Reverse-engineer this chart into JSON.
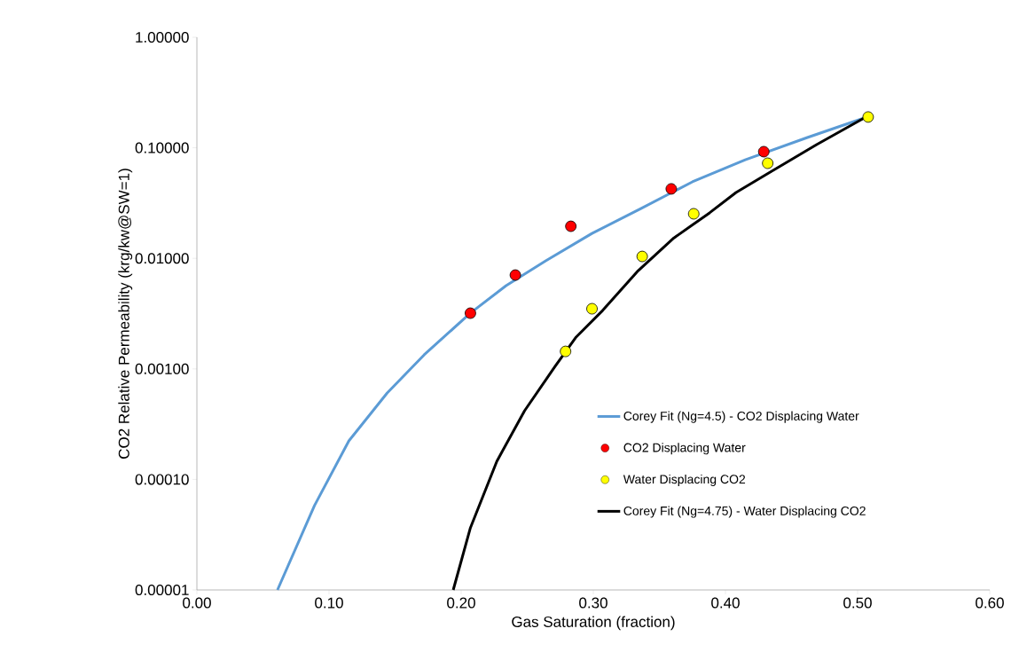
{
  "chart_data": {
    "type": "line",
    "xlabel": "Gas Saturation (fraction)",
    "ylabel": "CO2 Relative Permeability (krg/kw@SW=1)",
    "log": "y",
    "grid": false,
    "legend": "bottom right",
    "xlim": [
      0,
      0.6
    ],
    "ylim": [
      1e-05,
      1
    ],
    "xticks": [
      {
        "value": 0,
        "label": "0.00"
      },
      {
        "value": 0.1,
        "label": "0.10"
      },
      {
        "value": 0.2,
        "label": "0.20"
      },
      {
        "value": 0.3,
        "label": "0.30"
      },
      {
        "value": 0.4,
        "label": "0.40"
      },
      {
        "value": 0.5,
        "label": "0.50"
      },
      {
        "value": 0.6,
        "label": "0.60"
      }
    ],
    "yticks": [
      {
        "value": 1e-05,
        "label": "0.00001"
      },
      {
        "value": 0.0001,
        "label": "0.00010"
      },
      {
        "value": 0.001,
        "label": "0.00100"
      },
      {
        "value": 0.01,
        "label": "0.01000"
      },
      {
        "value": 0.1,
        "label": "0.10000"
      },
      {
        "value": 1,
        "label": "1.00000"
      }
    ],
    "series": [
      {
        "name": "Corey Fit (Ng=4.5) - CO2 Displacing Water",
        "color": "#5b9bd5",
        "marker": "none",
        "x": [
          0.061,
          0.089,
          0.115,
          0.144,
          0.172,
          0.207,
          0.234,
          0.264,
          0.299,
          0.336,
          0.375,
          0.415,
          0.462,
          0.505
        ],
        "values": [
          1e-05,
          5.8e-05,
          0.000223,
          0.000605,
          0.00134,
          0.0032,
          0.00566,
          0.0095,
          0.0168,
          0.0282,
          0.0492,
          0.078,
          0.124,
          0.186
        ]
      },
      {
        "name": "CO2 Displacing Water",
        "type": "scatter",
        "color": "#ff0000",
        "marker": "circle",
        "x": [
          0.207,
          0.241,
          0.283,
          0.359,
          0.429
        ],
        "values": [
          0.00319,
          0.00706,
          0.0195,
          0.0425,
          0.0922
        ]
      },
      {
        "name": "Water Displacing CO2",
        "type": "scatter",
        "color": "#ffff00",
        "marker": "circle",
        "x": [
          0.279,
          0.299,
          0.337,
          0.376,
          0.432,
          0.508
        ],
        "values": [
          0.00144,
          0.0035,
          0.0104,
          0.0253,
          0.0725,
          0.19
        ]
      },
      {
        "name": "Corey Fit (Ng=4.75) - Water Displacing CO2",
        "color": "#000000",
        "marker": "none",
        "x": [
          0.194,
          0.207,
          0.227,
          0.248,
          0.271,
          0.287,
          0.307,
          0.334,
          0.361,
          0.388,
          0.408,
          0.435,
          0.469,
          0.505
        ],
        "values": [
          1e-05,
          3.65e-05,
          0.000146,
          0.000418,
          0.00105,
          0.00194,
          0.00337,
          0.00774,
          0.0153,
          0.0258,
          0.0394,
          0.0614,
          0.107,
          0.186
        ]
      }
    ]
  }
}
